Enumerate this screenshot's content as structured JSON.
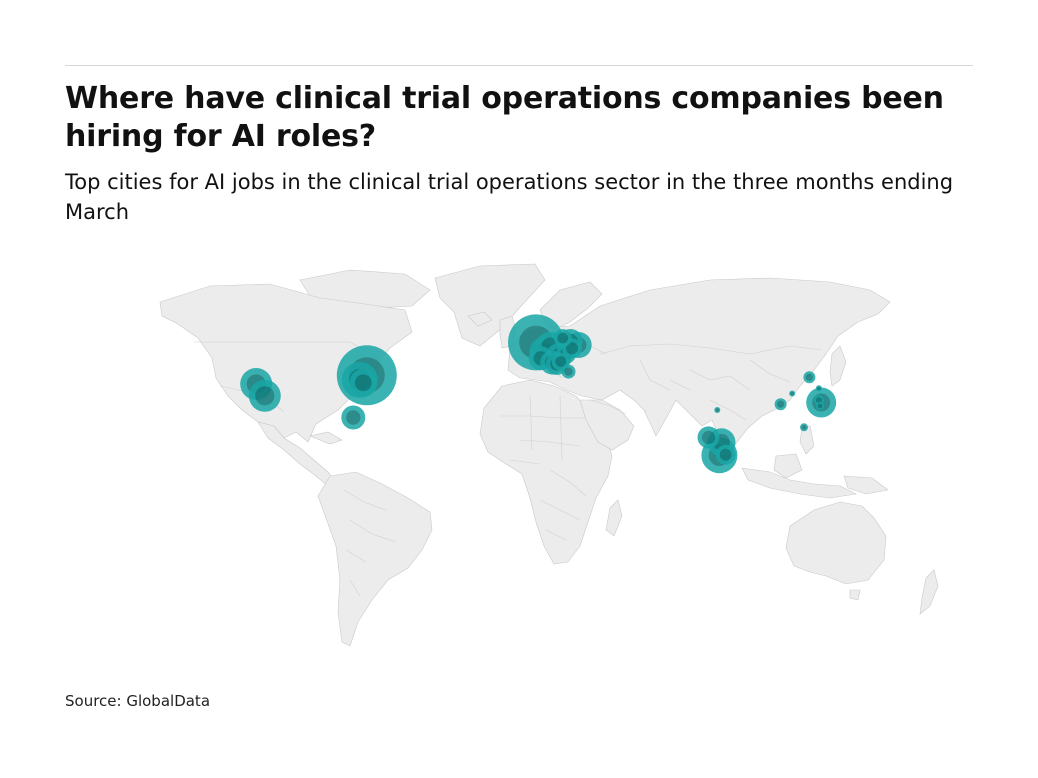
{
  "header": {
    "title": "Where have clinical trial operations companies been hiring for AI roles?",
    "subtitle": "Top cities for AI jobs in the clinical trial operations sector in the three months ending March"
  },
  "footer": {
    "source": "Source: GlobalData"
  },
  "colors": {
    "bubble": "#1aa6a6",
    "land": "#ececec",
    "border": "#c9c9c9"
  },
  "chart_data": {
    "type": "bubble-map",
    "title": "Where have clinical trial operations companies been hiring for AI roles?",
    "subtitle": "Top cities for AI jobs in the clinical trial operations sector in the three months ending March",
    "projection": "equirectangular",
    "bubbles": [
      {
        "lon": -122.2,
        "lat": 37.6,
        "size": 16
      },
      {
        "lon": -118.5,
        "lat": 33.5,
        "size": 16
      },
      {
        "lon": -80.3,
        "lat": 26.0,
        "size": 12
      },
      {
        "lon": -74.5,
        "lat": 40.6,
        "size": 30
      },
      {
        "lon": -77.5,
        "lat": 39.0,
        "size": 18
      },
      {
        "lon": -76.0,
        "lat": 38.0,
        "size": 14
      },
      {
        "lon": -1.5,
        "lat": 52.0,
        "size": 28
      },
      {
        "lon": 2.2,
        "lat": 48.8,
        "size": 15
      },
      {
        "lon": 4.5,
        "lat": 50.8,
        "size": 14
      },
      {
        "lon": 8.5,
        "lat": 47.3,
        "size": 13
      },
      {
        "lon": 0.5,
        "lat": 46.5,
        "size": 12
      },
      {
        "lon": 5.5,
        "lat": 45.0,
        "size": 12
      },
      {
        "lon": 7.5,
        "lat": 44.5,
        "size": 11
      },
      {
        "lon": 13.4,
        "lat": 52.5,
        "size": 12
      },
      {
        "lon": 10.0,
        "lat": 53.5,
        "size": 9
      },
      {
        "lon": 11.5,
        "lat": 48.1,
        "size": 10
      },
      {
        "lon": 9.2,
        "lat": 45.4,
        "size": 9
      },
      {
        "lon": 12.5,
        "lat": 41.9,
        "size": 7
      },
      {
        "lon": 16.9,
        "lat": 51.1,
        "size": 13
      },
      {
        "lon": 14.0,
        "lat": 50.0,
        "size": 10
      },
      {
        "lon": 72.9,
        "lat": 19.1,
        "size": 11
      },
      {
        "lon": 77.6,
        "lat": 12.9,
        "size": 18
      },
      {
        "lon": 78.5,
        "lat": 17.4,
        "size": 14
      },
      {
        "lon": 80.3,
        "lat": 13.1,
        "size": 10
      },
      {
        "lon": 76.7,
        "lat": 28.6,
        "size": 3
      },
      {
        "lon": 104.0,
        "lat": 30.6,
        "size": 6
      },
      {
        "lon": 109.0,
        "lat": 34.3,
        "size": 3
      },
      {
        "lon": 121.5,
        "lat": 31.2,
        "size": 15
      },
      {
        "lon": 120.5,
        "lat": 32.0,
        "size": 5
      },
      {
        "lon": 121.0,
        "lat": 30.0,
        "size": 4
      },
      {
        "lon": 116.4,
        "lat": 39.9,
        "size": 6
      },
      {
        "lon": 120.5,
        "lat": 36.1,
        "size": 3
      },
      {
        "lon": 114.1,
        "lat": 22.6,
        "size": 4
      }
    ]
  }
}
